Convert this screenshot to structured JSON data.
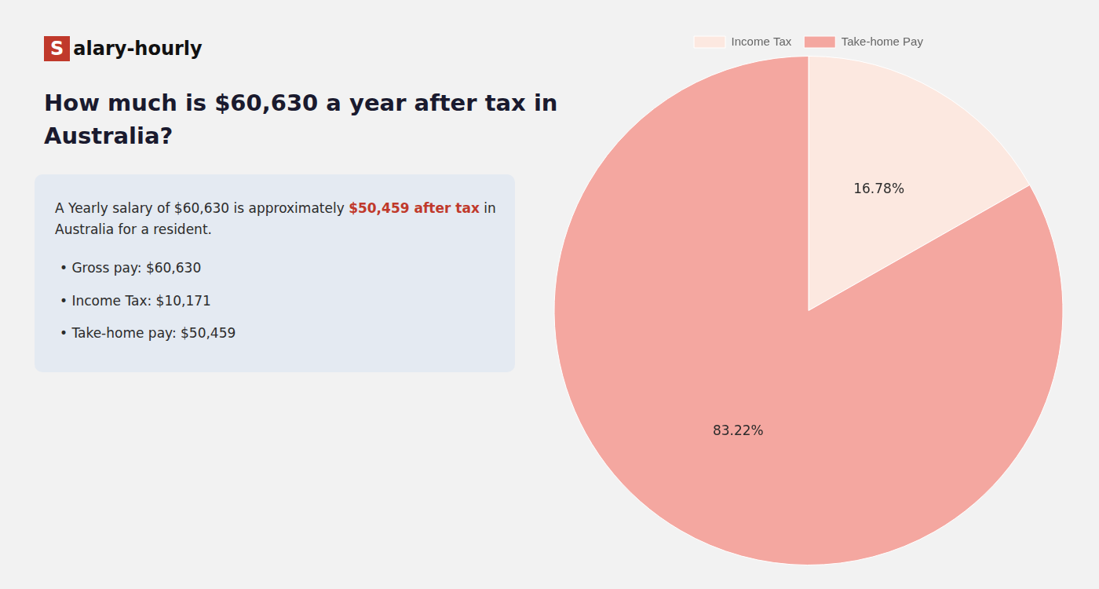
{
  "chart_data": {
    "type": "pie",
    "title": [
      "How much is $60,630 a year after tax in",
      "Australia?"
    ],
    "categories": [
      "Income Tax",
      "Take-home Pay"
    ],
    "values": [
      16.78,
      83.22
    ],
    "value_labels": [
      "16.78%",
      "83.22%"
    ],
    "colors": [
      "#fce8e0",
      "#f4a7a0"
    ],
    "data_labels": true,
    "legend": "top",
    "annotations": [
      [
        {
          "text": "S",
          "color": "#c0392b"
        },
        {
          "text": "alary-hourly"
        }
      ],
      [
        {
          "text": "A Yearly salary of $60,630 is approximately "
        },
        {
          "text": "$50,459 after tax",
          "color": "#c0392b"
        },
        {
          "text": " in"
        }
      ],
      [
        {
          "text": "Australia for a resident."
        }
      ],
      [
        {
          "text": "• Gross pay: $60,630"
        }
      ],
      [
        {
          "text": "• Income Tax: $10,171"
        }
      ],
      [
        {
          "text": "• Take-home pay: $50,459"
        }
      ]
    ]
  }
}
